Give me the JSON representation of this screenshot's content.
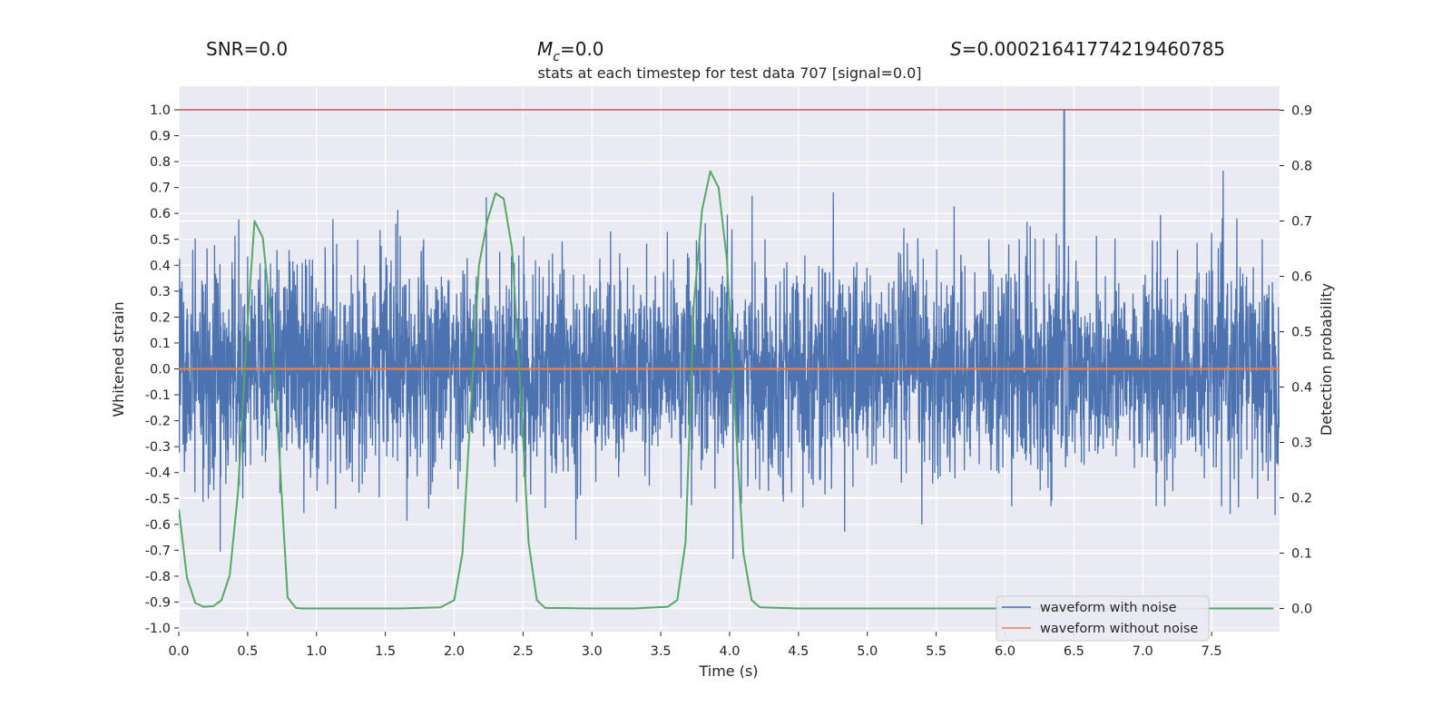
{
  "chart_data": {
    "type": "line",
    "title": "stats at each timestep for test data 707 [signal=0.0]",
    "stats": {
      "snr_label": "SNR=0.0",
      "mc_symbol": "M",
      "mc_subscript": "c",
      "mc_value": "=0.0",
      "s_symbol": "S",
      "s_value": "=0.00021641774219460785"
    },
    "xlabel": "Time (s)",
    "ylabel_left": "Whitened strain",
    "ylabel_right": "Detection probability",
    "xlim": [
      0.0,
      8.0
    ],
    "ylim_left": [
      -1.05,
      1.05
    ],
    "ylim_right": [
      -0.04,
      0.94
    ],
    "x_ticks": [
      "0.0",
      "0.5",
      "1.0",
      "1.5",
      "2.0",
      "2.5",
      "3.0",
      "3.5",
      "4.0",
      "4.5",
      "5.0",
      "5.5",
      "6.0",
      "6.5",
      "7.0",
      "7.5"
    ],
    "y_ticks_left": [
      "1.0",
      "0.9",
      "0.8",
      "0.7",
      "0.6",
      "0.5",
      "0.4",
      "0.3",
      "0.2",
      "0.1",
      "0.0",
      "-0.1",
      "-0.2",
      "-0.3",
      "-0.4",
      "-0.5",
      "-0.6",
      "-0.7",
      "-0.8",
      "-0.9",
      "-1.0"
    ],
    "y_ticks_right": [
      "0.9",
      "0.8",
      "0.7",
      "0.6",
      "0.5",
      "0.4",
      "0.3",
      "0.2",
      "0.1",
      "0.0"
    ],
    "grid": true,
    "legend_position": "lower-right",
    "series": [
      {
        "name": "waveform with noise",
        "color": "#4c72b0",
        "axis": "left",
        "style": "noise",
        "sample_count": 4096,
        "peak": {
          "x": 6.43,
          "y": 1.0
        },
        "envelope_pos": 0.58,
        "envelope_neg": -0.62
      },
      {
        "name": "waveform without noise",
        "color": "#dd8452",
        "axis": "left",
        "x": [
          0.0,
          8.0
        ],
        "y": [
          0.0,
          0.0
        ]
      },
      {
        "name": "",
        "color": "#55a868",
        "axis": "right",
        "x": [
          0.0,
          0.06,
          0.12,
          0.18,
          0.25,
          0.31,
          0.37,
          0.43,
          0.49,
          0.55,
          0.61,
          0.67,
          0.73,
          0.79,
          0.85,
          0.9,
          1.0,
          1.3,
          1.6,
          1.9,
          2.0,
          2.06,
          2.12,
          2.18,
          2.24,
          2.3,
          2.36,
          2.42,
          2.48,
          2.54,
          2.6,
          2.66,
          3.0,
          3.3,
          3.55,
          3.62,
          3.68,
          3.74,
          3.8,
          3.86,
          3.92,
          3.98,
          4.04,
          4.1,
          4.16,
          4.22,
          4.5,
          5.0,
          6.0,
          7.0,
          7.95
        ],
        "y": [
          0.18,
          0.055,
          0.01,
          0.003,
          0.004,
          0.015,
          0.06,
          0.21,
          0.48,
          0.7,
          0.67,
          0.52,
          0.28,
          0.02,
          0.001,
          0.0,
          0.0,
          0.0,
          0.0,
          0.002,
          0.015,
          0.1,
          0.36,
          0.62,
          0.7,
          0.75,
          0.74,
          0.65,
          0.4,
          0.12,
          0.015,
          0.001,
          0.0,
          0.0,
          0.003,
          0.015,
          0.12,
          0.55,
          0.72,
          0.79,
          0.76,
          0.63,
          0.35,
          0.1,
          0.015,
          0.002,
          0.0,
          0.0,
          0.0,
          0.0,
          0.0
        ]
      }
    ],
    "threshold": {
      "axis": "left",
      "y": 1.0,
      "color": "#c44e52"
    }
  }
}
